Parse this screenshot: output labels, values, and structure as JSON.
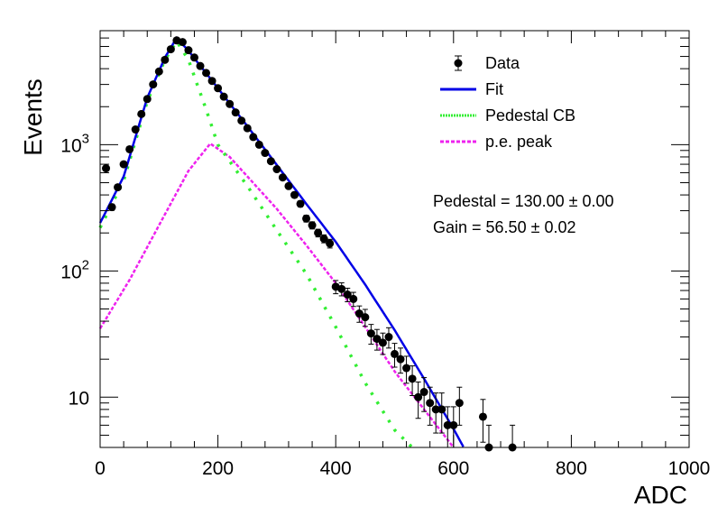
{
  "chart_data": {
    "type": "scatter",
    "xlabel": "ADC",
    "ylabel": "Events",
    "xlim": [
      0,
      1000
    ],
    "ylim": [
      4,
      8000
    ],
    "y_scale": "log",
    "x_ticks": [
      {
        "value": 0,
        "label": "0"
      },
      {
        "value": 200,
        "label": "200"
      },
      {
        "value": 400,
        "label": "400"
      },
      {
        "value": 600,
        "label": "600"
      },
      {
        "value": 800,
        "label": "800"
      },
      {
        "value": 1000,
        "label": "1000"
      }
    ],
    "y_ticks": [
      {
        "value": 10,
        "label": "10",
        "sup": ""
      },
      {
        "value": 100,
        "label": "10",
        "sup": "2"
      },
      {
        "value": 1000,
        "label": "10",
        "sup": "3"
      }
    ],
    "legend": {
      "position": "top-right",
      "entries": [
        {
          "label": "Data",
          "style": "marker",
          "color": "#000000"
        },
        {
          "label": "Fit",
          "style": "solid",
          "color": "#0000e6"
        },
        {
          "label": "Pedestal CB",
          "style": "dotted",
          "color": "#33ee33"
        },
        {
          "label": "p.e. peak",
          "style": "dashed",
          "color": "#ee22ee"
        }
      ]
    },
    "annotations": [
      "Pedestal = 130.00 ± 0.00",
      "Gain = 56.50 ± 0.02"
    ],
    "series": [
      {
        "name": "Data",
        "color": "#000000",
        "points": [
          [
            10,
            650,
            25
          ],
          [
            20,
            320,
            18
          ],
          [
            30,
            460,
            21
          ],
          [
            40,
            700,
            27
          ],
          [
            50,
            920,
            30
          ],
          [
            60,
            1320,
            36
          ],
          [
            70,
            1750,
            42
          ],
          [
            80,
            2300,
            48
          ],
          [
            90,
            3000,
            55
          ],
          [
            100,
            3800,
            62
          ],
          [
            110,
            4700,
            69
          ],
          [
            120,
            5700,
            76
          ],
          [
            130,
            6700,
            82
          ],
          [
            140,
            6500,
            81
          ],
          [
            150,
            5600,
            75
          ],
          [
            160,
            4900,
            70
          ],
          [
            170,
            4200,
            65
          ],
          [
            180,
            3700,
            61
          ],
          [
            190,
            3200,
            57
          ],
          [
            200,
            2800,
            53
          ],
          [
            210,
            2400,
            49
          ],
          [
            220,
            2100,
            46
          ],
          [
            230,
            1800,
            43
          ],
          [
            240,
            1550,
            40
          ],
          [
            250,
            1350,
            37
          ],
          [
            260,
            1150,
            34
          ],
          [
            270,
            1000,
            32
          ],
          [
            280,
            860,
            30
          ],
          [
            290,
            740,
            27
          ],
          [
            300,
            640,
            25
          ],
          [
            310,
            550,
            24
          ],
          [
            320,
            470,
            22
          ],
          [
            330,
            400,
            20
          ],
          [
            340,
            340,
            18
          ],
          [
            350,
            260,
            16
          ],
          [
            360,
            230,
            15
          ],
          [
            370,
            200,
            14
          ],
          [
            380,
            180,
            13
          ],
          [
            390,
            165,
            13
          ],
          [
            400,
            75,
            9
          ],
          [
            410,
            72,
            8.5
          ],
          [
            420,
            65,
            8
          ],
          [
            430,
            60,
            7.7
          ],
          [
            440,
            46,
            6.8
          ],
          [
            450,
            43,
            6.6
          ],
          [
            460,
            32,
            5.7
          ],
          [
            470,
            29,
            5.4
          ],
          [
            480,
            27,
            5.2
          ],
          [
            490,
            30,
            5.5
          ],
          [
            500,
            22,
            4.7
          ],
          [
            510,
            20,
            4.5
          ],
          [
            520,
            17,
            4.1
          ],
          [
            530,
            14,
            3.7
          ],
          [
            540,
            10,
            3.2
          ],
          [
            550,
            11,
            3.3
          ],
          [
            560,
            9,
            3
          ],
          [
            570,
            8,
            2.8
          ],
          [
            580,
            8,
            2.8
          ],
          [
            590,
            6,
            2.4
          ],
          [
            600,
            6,
            2.4
          ],
          [
            610,
            9,
            3
          ],
          [
            650,
            7,
            2.6
          ],
          [
            660,
            4,
            2
          ],
          [
            700,
            4,
            2
          ]
        ]
      },
      {
        "name": "Fit",
        "color": "#0000e6",
        "x": [
          0,
          40,
          80,
          110,
          130,
          150,
          200,
          250,
          300,
          350,
          400,
          450,
          500,
          550,
          600,
          620
        ],
        "y": [
          240,
          560,
          2350,
          4900,
          7000,
          5550,
          2800,
          1400,
          690,
          340,
          170,
          78,
          34,
          14,
          5.6,
          3.8
        ]
      },
      {
        "name": "Pedestal CB",
        "color": "#33ee33",
        "x": [
          0,
          40,
          80,
          110,
          130,
          150,
          180,
          200,
          250,
          300,
          350,
          400,
          450,
          500,
          530
        ],
        "y": [
          220,
          520,
          2200,
          4700,
          6600,
          4700,
          1900,
          1000,
          470,
          210,
          95,
          36,
          13,
          5.5,
          4
        ]
      },
      {
        "name": "p.e. peak",
        "color": "#ee22ee",
        "x": [
          0,
          50,
          100,
          150,
          187,
          220,
          250,
          300,
          350,
          400,
          450,
          500,
          550,
          590,
          600
        ],
        "y": [
          35,
          85,
          230,
          620,
          1020,
          800,
          560,
          310,
          160,
          80,
          36,
          16,
          8,
          4.6,
          4
        ]
      }
    ]
  }
}
